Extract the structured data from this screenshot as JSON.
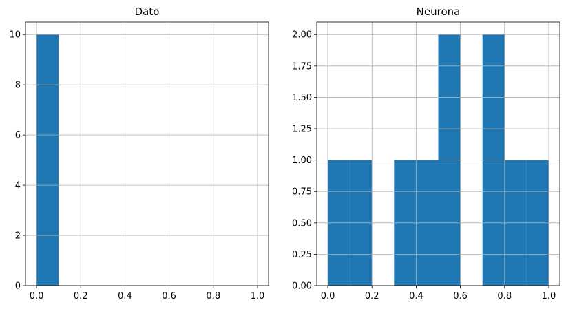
{
  "chart_data": [
    {
      "type": "bar",
      "title": "Dato",
      "bins": [
        {
          "x0": 0.0,
          "x1": 0.1,
          "count": 10
        }
      ],
      "xlim": [
        -0.05,
        1.05
      ],
      "ylim": [
        0,
        10.5
      ],
      "xticks": [
        0.0,
        0.2,
        0.4,
        0.6,
        0.8,
        1.0
      ],
      "xtick_labels": [
        "0.0",
        "0.2",
        "0.4",
        "0.6",
        "0.8",
        "1.0"
      ],
      "yticks": [
        0,
        2,
        4,
        6,
        8,
        10
      ],
      "ytick_labels": [
        "0",
        "2",
        "4",
        "6",
        "8",
        "10"
      ],
      "grid": true,
      "bar_color": "#1f77b4"
    },
    {
      "type": "bar",
      "title": "Neurona",
      "bins": [
        {
          "x0": 0.0,
          "x1": 0.1,
          "count": 1
        },
        {
          "x0": 0.1,
          "x1": 0.2,
          "count": 1
        },
        {
          "x0": 0.3,
          "x1": 0.4,
          "count": 1
        },
        {
          "x0": 0.4,
          "x1": 0.5,
          "count": 1
        },
        {
          "x0": 0.5,
          "x1": 0.6,
          "count": 2
        },
        {
          "x0": 0.7,
          "x1": 0.8,
          "count": 2
        },
        {
          "x0": 0.8,
          "x1": 0.9,
          "count": 1
        },
        {
          "x0": 0.9,
          "x1": 1.0,
          "count": 1
        }
      ],
      "xlim": [
        -0.05,
        1.05
      ],
      "ylim": [
        0,
        2.1
      ],
      "xticks": [
        0.0,
        0.2,
        0.4,
        0.6,
        0.8,
        1.0
      ],
      "xtick_labels": [
        "0.0",
        "0.2",
        "0.4",
        "0.6",
        "0.8",
        "1.0"
      ],
      "yticks": [
        0.0,
        0.25,
        0.5,
        0.75,
        1.0,
        1.25,
        1.5,
        1.75,
        2.0
      ],
      "ytick_labels": [
        "0.00",
        "0.25",
        "0.50",
        "0.75",
        "1.00",
        "1.25",
        "1.50",
        "1.75",
        "2.00"
      ],
      "grid": true,
      "bar_color": "#1f77b4"
    }
  ]
}
